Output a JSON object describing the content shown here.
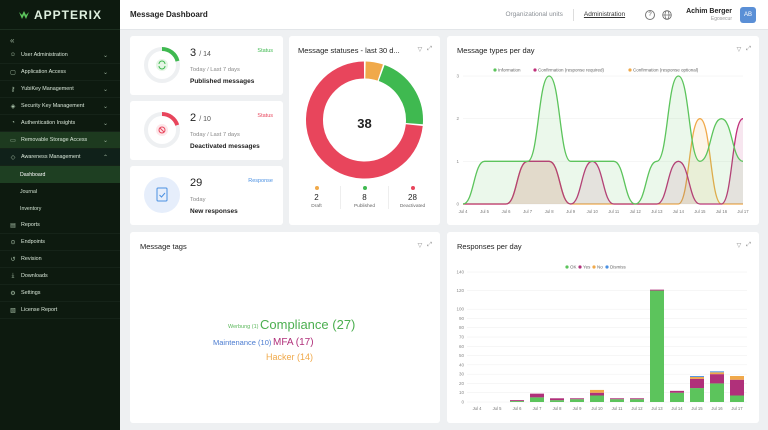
{
  "app": {
    "name": "APPTERIX"
  },
  "sidebar": {
    "collapse_glyph": "«",
    "items": [
      {
        "label": "User Administration",
        "icon": "user-icon",
        "chevron": true
      },
      {
        "label": "Application Access",
        "icon": "lock-icon",
        "chevron": true
      },
      {
        "label": "YubiKey Management",
        "icon": "key-icon",
        "chevron": true
      },
      {
        "label": "Security Key Management",
        "icon": "security-key-icon",
        "chevron": true
      },
      {
        "label": "Authentication Insights",
        "icon": "insights-icon",
        "chevron": true
      },
      {
        "label": "Removable Storage Access",
        "icon": "storage-icon",
        "chevron": true
      },
      {
        "label": "Awareness Management",
        "icon": "awareness-icon",
        "chevron": true
      }
    ],
    "sub_items": [
      {
        "label": "Dashboard"
      },
      {
        "label": "Journal"
      },
      {
        "label": "Inventory"
      }
    ],
    "bottom_items": [
      {
        "label": "Reports",
        "icon": "reports-icon"
      },
      {
        "label": "Endpoints",
        "icon": "endpoints-icon"
      },
      {
        "label": "Revision",
        "icon": "revision-icon"
      },
      {
        "label": "Downloads",
        "icon": "download-icon"
      },
      {
        "label": "Settings",
        "icon": "gear-icon"
      },
      {
        "label": "License Report",
        "icon": "license-icon"
      }
    ]
  },
  "topbar": {
    "title": "Message Dashboard",
    "org_units": "Organizational units",
    "admin": "Administration",
    "help_glyph": "?",
    "user_name": "Achim Berger",
    "user_org": "Egosecur",
    "avatar": "AB"
  },
  "stats": [
    {
      "value": "3",
      "total": "/ 14",
      "period": "Today / Last 7 days",
      "label": "Published messages",
      "tag": "Status",
      "color": "#3fb950",
      "fraction": 0.21
    },
    {
      "value": "2",
      "total": "/ 10",
      "period": "Today / Last 7 days",
      "label": "Deactivated messages",
      "tag": "Status",
      "color": "#e8455c",
      "fraction": 0.2
    },
    {
      "value": "29",
      "total": "",
      "period": "Today",
      "label": "New responses",
      "tag": "Response",
      "color": "#4a90e2",
      "fraction": 1
    }
  ],
  "statuses": {
    "title": "Message statuses - last 30 d...",
    "total": "38",
    "colors": {
      "draft": "#f0a94a",
      "published": "#3fb950",
      "deactivated": "#e8455c"
    },
    "legend": [
      {
        "value": "2",
        "label": "Draft"
      },
      {
        "value": "8",
        "label": "Published"
      },
      {
        "value": "28",
        "label": "Deactivated"
      }
    ]
  },
  "types": {
    "title": "Message types per day",
    "legend": [
      "Information",
      "Confirmation (response required)",
      "Confirmation (response optional)"
    ]
  },
  "tags": {
    "title": "Message tags",
    "words": [
      {
        "text": "Werbung (1)",
        "color": "#5cb85c"
      },
      {
        "text": "Compliance (27)",
        "color": "#4caf50"
      },
      {
        "text": "Maintenance (10)",
        "color": "#4a7bd0"
      },
      {
        "text": "MFA (17)",
        "color": "#b0307a"
      },
      {
        "text": "Hacker (14)",
        "color": "#f0a94a"
      }
    ]
  },
  "responses": {
    "title": "Responses per day",
    "legend": [
      "OK",
      "Yes",
      "No",
      "Dismiss"
    ]
  },
  "chart_data": [
    {
      "type": "pie",
      "title": "Message statuses - last 30 d...",
      "categories": [
        "Draft",
        "Published",
        "Deactivated"
      ],
      "values": [
        2,
        8,
        28
      ],
      "colors": [
        "#f0a94a",
        "#3fb950",
        "#e8455c"
      ]
    },
    {
      "type": "area",
      "title": "Message types per day",
      "categories": [
        "Jul 4",
        "Jul 5",
        "Jul 6",
        "Jul 7",
        "Jul 8",
        "Jul 9",
        "Jul 10",
        "Jul 11",
        "Jul 12",
        "Jul 13",
        "Jul 14",
        "Jul 15",
        "Jul 16",
        "Jul 17"
      ],
      "ylim": [
        0,
        3
      ],
      "yticks": [
        "0",
        "1",
        "2",
        "3"
      ],
      "series": [
        {
          "name": "Information",
          "color": "#5cc45c",
          "values": [
            0,
            1,
            1,
            1,
            3,
            1,
            1,
            1,
            0,
            1,
            3,
            1,
            2,
            1
          ]
        },
        {
          "name": "Confirmation (response required)",
          "color": "#c0307a",
          "values": [
            0,
            0,
            0,
            1,
            1,
            0,
            1,
            0,
            0,
            0,
            1,
            0,
            0,
            2
          ]
        },
        {
          "name": "Confirmation (response optional)",
          "color": "#f0a94a",
          "values": [
            0,
            0,
            0,
            1,
            1,
            0,
            0,
            0,
            0,
            0,
            0,
            2,
            0,
            0
          ]
        }
      ],
      "legend": "top"
    },
    {
      "type": "bar",
      "title": "Responses per day",
      "stacked": true,
      "categories": [
        "Jul 4",
        "Jul 5",
        "Jul 6",
        "Jul 7",
        "Jul 8",
        "Jul 9",
        "Jul 10",
        "Jul 11",
        "Jul 12",
        "Jul 13",
        "Jul 14",
        "Jul 15",
        "Jul 16",
        "Jul 17"
      ],
      "ylim": [
        0,
        140
      ],
      "yticks": [
        "0",
        "10",
        "20",
        "30",
        "40",
        "50",
        "60",
        "70",
        "80",
        "90",
        "100",
        "120",
        "140"
      ],
      "series": [
        {
          "name": "OK",
          "color": "#5cc45c",
          "values": [
            0,
            0,
            1,
            5,
            2,
            3,
            7,
            3,
            3,
            120,
            10,
            15,
            20,
            7
          ]
        },
        {
          "name": "Yes",
          "color": "#b0307a",
          "values": [
            0,
            0,
            1,
            4,
            2,
            1,
            3,
            1,
            1,
            1,
            2,
            10,
            10,
            17
          ]
        },
        {
          "name": "No",
          "color": "#f0a94a",
          "values": [
            0,
            0,
            0,
            0,
            0,
            0,
            3,
            0,
            0,
            0,
            0,
            2,
            2,
            4
          ]
        },
        {
          "name": "Dismiss",
          "color": "#4a90e2",
          "values": [
            0,
            0,
            0,
            0,
            0,
            0,
            0,
            0,
            0,
            0,
            0,
            1,
            1,
            0
          ]
        }
      ],
      "legend": "top"
    }
  ]
}
